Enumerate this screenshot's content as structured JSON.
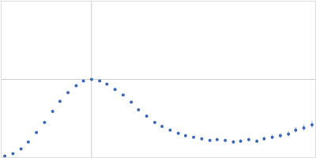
{
  "chart_data": {
    "type": "scatter",
    "color": "#3a66b5",
    "marker": "circle",
    "grid": true,
    "tick_labels": false,
    "xlim": [
      0,
      3.48
    ],
    "xticks": [
      1
    ],
    "ylim": [
      0,
      2
    ],
    "yticks": [
      1
    ],
    "x": [
      0.04,
      0.13,
      0.22,
      0.3,
      0.39,
      0.48,
      0.57,
      0.65,
      0.74,
      0.83,
      0.91,
      1.0,
      1.09,
      1.17,
      1.26,
      1.35,
      1.44,
      1.52,
      1.61,
      1.7,
      1.78,
      1.87,
      1.96,
      2.04,
      2.13,
      2.22,
      2.31,
      2.39,
      2.48,
      2.57,
      2.65,
      2.74,
      2.83,
      2.91,
      3.0,
      3.09,
      3.18,
      3.26,
      3.35,
      3.44
    ],
    "values": [
      0.02,
      0.05,
      0.11,
      0.2,
      0.32,
      0.45,
      0.59,
      0.72,
      0.83,
      0.92,
      0.98,
      1.0,
      0.98,
      0.94,
      0.87,
      0.8,
      0.71,
      0.61,
      0.53,
      0.45,
      0.4,
      0.35,
      0.31,
      0.28,
      0.26,
      0.24,
      0.22,
      0.23,
      0.22,
      0.2,
      0.21,
      0.23,
      0.21,
      0.24,
      0.26,
      0.28,
      0.3,
      0.35,
      0.38,
      0.42
    ],
    "errors": [
      0.002,
      0.002,
      0.003,
      0.003,
      0.003,
      0.004,
      0.004,
      0.004,
      0.005,
      0.005,
      0.005,
      0.006,
      0.006,
      0.006,
      0.007,
      0.007,
      0.008,
      0.008,
      0.009,
      0.01,
      0.01,
      0.011,
      0.012,
      0.013,
      0.014,
      0.015,
      0.016,
      0.017,
      0.018,
      0.019,
      0.02,
      0.022,
      0.024,
      0.026,
      0.028,
      0.03,
      0.033,
      0.036,
      0.04,
      0.045
    ]
  }
}
